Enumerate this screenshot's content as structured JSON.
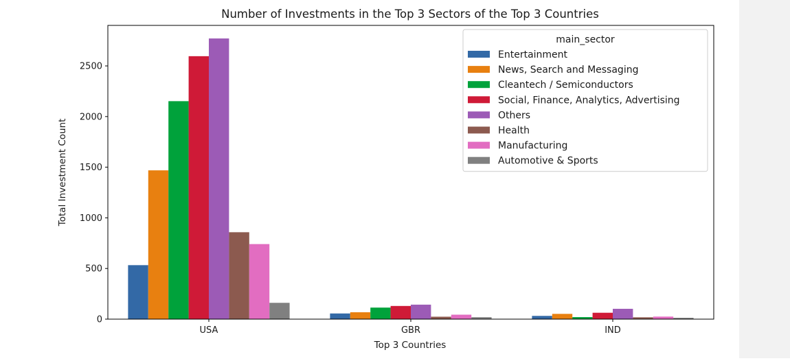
{
  "chart_data": {
    "type": "bar",
    "title": "Number of Investments in the Top 3 Sectors of the Top 3 Countries",
    "xlabel": "Top 3 Countries",
    "ylabel": "Total Investment Count",
    "categories": [
      "USA",
      "GBR",
      "IND"
    ],
    "ylim": [
      0,
      2900
    ],
    "yticks": [
      0,
      500,
      1000,
      1500,
      2000,
      2500
    ],
    "grid": false,
    "legend": {
      "title": "main_sector",
      "position": "top-right"
    },
    "series": [
      {
        "name": "Entertainment",
        "color": "#3369a6",
        "values": [
          533,
          56,
          32
        ]
      },
      {
        "name": "News, Search and Messaging",
        "color": "#e88010",
        "values": [
          1469,
          68,
          52
        ]
      },
      {
        "name": "Cleantech / Semiconductors",
        "color": "#00a23b",
        "values": [
          2152,
          114,
          20
        ]
      },
      {
        "name": "Social, Finance, Analytics, Advertising",
        "color": "#cf1a37",
        "values": [
          2596,
          130,
          63
        ]
      },
      {
        "name": "Others",
        "color": "#9c5bb6",
        "values": [
          2771,
          143,
          102
        ]
      },
      {
        "name": "Health",
        "color": "#8c5a4f",
        "values": [
          858,
          24,
          18
        ]
      },
      {
        "name": "Manufacturing",
        "color": "#e26dc1",
        "values": [
          741,
          44,
          25
        ]
      },
      {
        "name": "Automotive & Sports",
        "color": "#808080",
        "values": [
          161,
          19,
          13
        ]
      }
    ]
  }
}
